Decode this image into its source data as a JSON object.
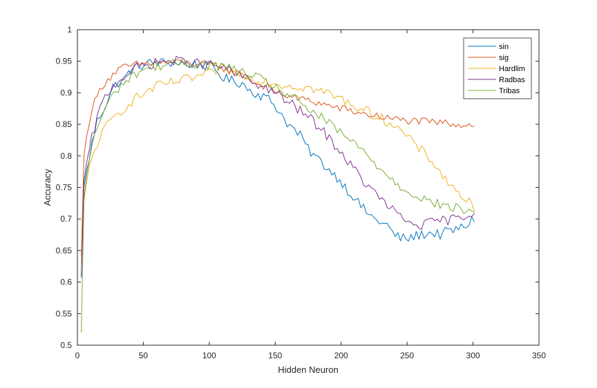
{
  "chart_data": {
    "type": "line",
    "title": "",
    "xlabel": "Hidden Neuron",
    "ylabel": "Accuracy",
    "xlim": [
      0,
      350
    ],
    "ylim": [
      0.5,
      1
    ],
    "xticks": [
      0,
      50,
      100,
      150,
      200,
      250,
      300,
      350
    ],
    "yticks": [
      0.5,
      0.55,
      0.6,
      0.65,
      0.7,
      0.75,
      0.8,
      0.85,
      0.9,
      0.95,
      1
    ],
    "grid": false,
    "legend": "top-right",
    "x_step": 2,
    "series": [
      {
        "name": "sin",
        "color": "#0072BD",
        "x": [
          3,
          5,
          10,
          15,
          20,
          25,
          30,
          35,
          40,
          45,
          50,
          55,
          60,
          65,
          70,
          75,
          80,
          85,
          90,
          95,
          100,
          105,
          110,
          115,
          120,
          125,
          130,
          135,
          140,
          145,
          150,
          155,
          160,
          165,
          170,
          175,
          180,
          185,
          190,
          195,
          200,
          205,
          210,
          215,
          220,
          225,
          230,
          235,
          240,
          245,
          250,
          255,
          260,
          265,
          270,
          275,
          280,
          285,
          290,
          295,
          300,
          302
        ],
        "y": [
          0.607,
          0.75,
          0.81,
          0.855,
          0.875,
          0.9,
          0.915,
          0.92,
          0.935,
          0.94,
          0.945,
          0.947,
          0.948,
          0.948,
          0.948,
          0.948,
          0.947,
          0.946,
          0.945,
          0.944,
          0.942,
          0.935,
          0.925,
          0.92,
          0.918,
          0.915,
          0.905,
          0.9,
          0.895,
          0.89,
          0.88,
          0.865,
          0.85,
          0.84,
          0.83,
          0.81,
          0.8,
          0.79,
          0.78,
          0.77,
          0.76,
          0.745,
          0.735,
          0.72,
          0.71,
          0.7,
          0.695,
          0.69,
          0.675,
          0.67,
          0.668,
          0.672,
          0.675,
          0.677,
          0.678,
          0.675,
          0.68,
          0.682,
          0.685,
          0.69,
          0.7,
          0.703
        ],
        "noise": 0.008
      },
      {
        "name": "sig",
        "color": "#D95319",
        "x": [
          3,
          5,
          10,
          15,
          20,
          25,
          30,
          35,
          40,
          45,
          50,
          55,
          60,
          65,
          70,
          75,
          80,
          85,
          90,
          95,
          100,
          105,
          110,
          115,
          120,
          125,
          130,
          135,
          140,
          145,
          150,
          155,
          160,
          165,
          170,
          175,
          180,
          185,
          190,
          195,
          200,
          205,
          210,
          215,
          220,
          225,
          230,
          235,
          240,
          245,
          250,
          255,
          260,
          265,
          270,
          275,
          280,
          285,
          290,
          295,
          300,
          302
        ],
        "y": [
          0.64,
          0.8,
          0.87,
          0.895,
          0.915,
          0.925,
          0.935,
          0.94,
          0.942,
          0.945,
          0.946,
          0.947,
          0.948,
          0.948,
          0.948,
          0.948,
          0.948,
          0.947,
          0.946,
          0.945,
          0.945,
          0.943,
          0.94,
          0.935,
          0.932,
          0.928,
          0.922,
          0.915,
          0.912,
          0.908,
          0.902,
          0.898,
          0.895,
          0.892,
          0.89,
          0.888,
          0.885,
          0.883,
          0.88,
          0.877,
          0.875,
          0.873,
          0.87,
          0.868,
          0.865,
          0.864,
          0.862,
          0.86,
          0.858,
          0.857,
          0.856,
          0.855,
          0.855,
          0.854,
          0.853,
          0.853,
          0.852,
          0.851,
          0.85,
          0.85,
          0.849,
          0.846
        ],
        "noise": 0.006
      },
      {
        "name": "Hardlim",
        "color": "#EDB120",
        "x": [
          3,
          5,
          10,
          15,
          20,
          25,
          30,
          35,
          40,
          45,
          50,
          55,
          60,
          65,
          70,
          75,
          80,
          85,
          90,
          95,
          100,
          105,
          110,
          115,
          120,
          125,
          130,
          135,
          140,
          145,
          150,
          155,
          160,
          165,
          170,
          175,
          180,
          185,
          190,
          195,
          200,
          205,
          210,
          215,
          220,
          225,
          230,
          235,
          240,
          245,
          250,
          255,
          260,
          265,
          270,
          275,
          280,
          285,
          290,
          295,
          300,
          302
        ],
        "y": [
          0.63,
          0.73,
          0.79,
          0.82,
          0.84,
          0.855,
          0.865,
          0.875,
          0.885,
          0.892,
          0.898,
          0.905,
          0.91,
          0.913,
          0.915,
          0.918,
          0.92,
          0.922,
          0.925,
          0.928,
          0.93,
          0.935,
          0.938,
          0.935,
          0.93,
          0.928,
          0.925,
          0.922,
          0.92,
          0.918,
          0.915,
          0.913,
          0.912,
          0.91,
          0.91,
          0.908,
          0.905,
          0.902,
          0.9,
          0.895,
          0.89,
          0.885,
          0.88,
          0.875,
          0.87,
          0.865,
          0.86,
          0.855,
          0.85,
          0.84,
          0.83,
          0.82,
          0.81,
          0.8,
          0.79,
          0.775,
          0.76,
          0.75,
          0.74,
          0.73,
          0.72,
          0.695
        ],
        "noise": 0.008
      },
      {
        "name": "Radbas",
        "color": "#7E2F8E",
        "x": [
          3,
          5,
          10,
          15,
          20,
          25,
          30,
          35,
          40,
          45,
          50,
          55,
          60,
          65,
          70,
          75,
          80,
          85,
          90,
          95,
          100,
          105,
          110,
          115,
          120,
          125,
          130,
          135,
          140,
          145,
          150,
          155,
          160,
          165,
          170,
          175,
          180,
          185,
          190,
          195,
          200,
          205,
          210,
          215,
          220,
          225,
          230,
          235,
          240,
          245,
          250,
          255,
          260,
          265,
          270,
          275,
          280,
          285,
          290,
          295,
          300,
          302
        ],
        "y": [
          0.61,
          0.76,
          0.82,
          0.86,
          0.89,
          0.905,
          0.918,
          0.925,
          0.935,
          0.94,
          0.942,
          0.945,
          0.948,
          0.95,
          0.95,
          0.95,
          0.95,
          0.948,
          0.947,
          0.945,
          0.945,
          0.943,
          0.94,
          0.935,
          0.93,
          0.926,
          0.92,
          0.915,
          0.91,
          0.906,
          0.9,
          0.892,
          0.885,
          0.878,
          0.87,
          0.862,
          0.852,
          0.842,
          0.83,
          0.818,
          0.805,
          0.792,
          0.778,
          0.765,
          0.752,
          0.742,
          0.732,
          0.722,
          0.712,
          0.703,
          0.696,
          0.692,
          0.69,
          0.692,
          0.695,
          0.697,
          0.698,
          0.7,
          0.702,
          0.705,
          0.71,
          0.722
        ],
        "noise": 0.008
      },
      {
        "name": "Tribas",
        "color": "#77AC30",
        "x": [
          3,
          5,
          10,
          15,
          20,
          25,
          30,
          35,
          40,
          45,
          50,
          55,
          60,
          65,
          70,
          75,
          80,
          85,
          90,
          95,
          100,
          105,
          110,
          115,
          120,
          125,
          130,
          135,
          140,
          145,
          150,
          155,
          160,
          165,
          170,
          175,
          180,
          185,
          190,
          195,
          200,
          205,
          210,
          215,
          220,
          225,
          230,
          235,
          240,
          245,
          250,
          255,
          260,
          265,
          270,
          275,
          280,
          285,
          290,
          295,
          300,
          302
        ],
        "y": [
          0.52,
          0.73,
          0.81,
          0.845,
          0.87,
          0.89,
          0.905,
          0.915,
          0.925,
          0.932,
          0.937,
          0.94,
          0.942,
          0.944,
          0.945,
          0.946,
          0.946,
          0.946,
          0.946,
          0.945,
          0.944,
          0.943,
          0.942,
          0.94,
          0.935,
          0.932,
          0.928,
          0.924,
          0.92,
          0.915,
          0.91,
          0.902,
          0.896,
          0.89,
          0.882,
          0.875,
          0.868,
          0.86,
          0.852,
          0.844,
          0.836,
          0.828,
          0.82,
          0.81,
          0.8,
          0.79,
          0.78,
          0.77,
          0.76,
          0.752,
          0.745,
          0.74,
          0.735,
          0.73,
          0.726,
          0.722,
          0.72,
          0.718,
          0.716,
          0.714,
          0.71,
          0.715
        ],
        "noise": 0.008
      }
    ]
  }
}
